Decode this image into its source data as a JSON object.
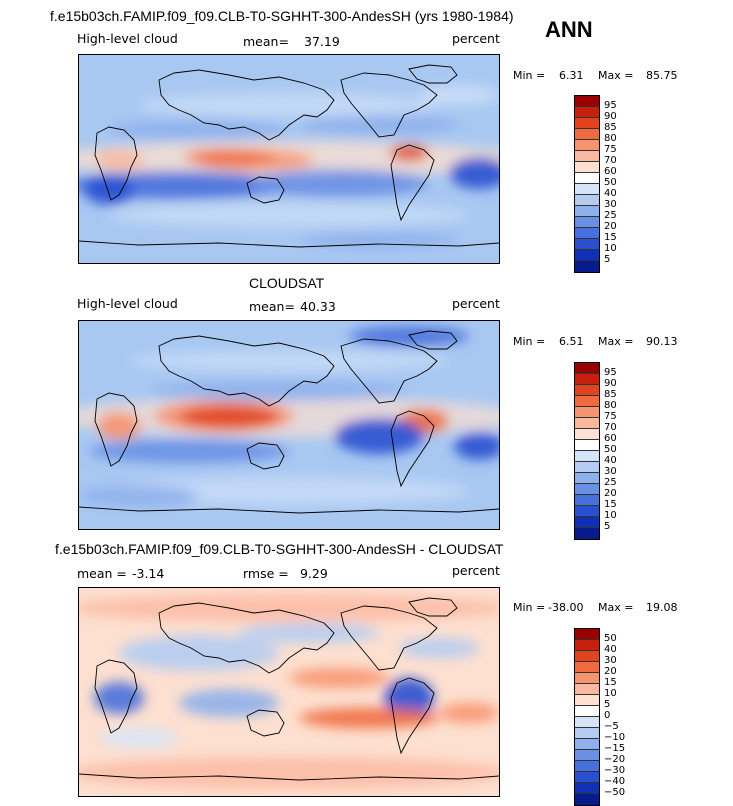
{
  "annual_label": "ANN",
  "chart_data": [
    {
      "type": "heatmap",
      "title": "f.e15b03ch.FAMIP.f09_f09.CLB-T0-SGHHT-300-AndesSH (yrs 1980-1984)",
      "variable": "High-level cloud",
      "stat_label": "mean=",
      "stat_value": "37.19",
      "units": "percent",
      "min_label": "Min =",
      "min": "6.31",
      "max_label": "Max =",
      "max": "85.75",
      "colorbar_levels": [
        "95",
        "90",
        "85",
        "80",
        "75",
        "70",
        "60",
        "50",
        "40",
        "30",
        "25",
        "20",
        "15",
        "10",
        "5"
      ],
      "colorbar_colors": [
        "#990000",
        "#c8200e",
        "#e0431e",
        "#ef6a3e",
        "#f79470",
        "#fbb8a0",
        "#fde0d0",
        "#ffffff",
        "#d6e4f8",
        "#b4ccf2",
        "#8eb0ec",
        "#6a90e4",
        "#4870dc",
        "#2a50d0",
        "#1030b8",
        "#081a8c"
      ]
    },
    {
      "type": "heatmap",
      "title": "CLOUDSAT",
      "variable": "High-level cloud",
      "stat_label": "mean=",
      "stat_value": "40.33",
      "units": "percent",
      "min_label": "Min =",
      "min": "6.51",
      "max_label": "Max =",
      "max": "90.13",
      "colorbar_levels": [
        "95",
        "90",
        "85",
        "80",
        "75",
        "70",
        "60",
        "50",
        "40",
        "30",
        "25",
        "20",
        "15",
        "10",
        "5"
      ],
      "colorbar_colors": [
        "#990000",
        "#c8200e",
        "#e0431e",
        "#ef6a3e",
        "#f79470",
        "#fbb8a0",
        "#fde0d0",
        "#ffffff",
        "#d6e4f8",
        "#b4ccf2",
        "#8eb0ec",
        "#6a90e4",
        "#4870dc",
        "#2a50d0",
        "#1030b8",
        "#081a8c"
      ]
    },
    {
      "type": "heatmap",
      "title": "f.e15b03ch.FAMIP.f09_f09.CLB-T0-SGHHT-300-AndesSH - CLOUDSAT",
      "stat_label": "mean =",
      "stat_value": "-3.14",
      "stat2_label": "rmse =",
      "stat2_value": "9.29",
      "units": "percent",
      "min_label": "Min =",
      "min": "-38.00",
      "max_label": "Max =",
      "max": "19.08",
      "colorbar_levels": [
        "50",
        "40",
        "30",
        "20",
        "15",
        "10",
        "5",
        "0",
        "−5",
        "−10",
        "−15",
        "−20",
        "−30",
        "−40",
        "−50"
      ],
      "colorbar_colors": [
        "#990000",
        "#c8200e",
        "#e0431e",
        "#ef6a3e",
        "#f79470",
        "#fbb8a0",
        "#fde0d0",
        "#ffffff",
        "#d6e4f8",
        "#b4ccf2",
        "#8eb0ec",
        "#6a90e4",
        "#4870dc",
        "#2a50d0",
        "#1030b8",
        "#081a8c"
      ]
    }
  ]
}
